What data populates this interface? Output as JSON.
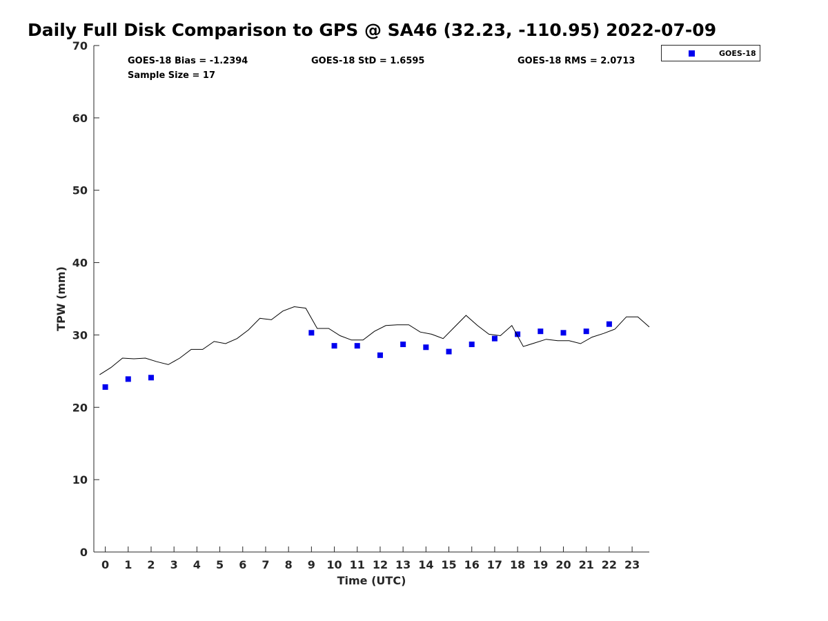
{
  "chart_data": {
    "type": "scatter",
    "title": "Daily Full Disk Comparison to GPS @ SA46 (32.23, -110.95) 2022-07-09",
    "xlabel": "Time (UTC)",
    "ylabel": "TPW (mm)",
    "xlim": [
      -0.5,
      23.75
    ],
    "ylim": [
      0,
      70
    ],
    "x_ticks": [
      0,
      1,
      2,
      3,
      4,
      5,
      6,
      7,
      8,
      9,
      10,
      11,
      12,
      13,
      14,
      15,
      16,
      17,
      18,
      19,
      20,
      21,
      22,
      23
    ],
    "y_ticks": [
      0,
      10,
      20,
      30,
      40,
      50,
      60,
      70
    ],
    "grid": false,
    "legend_position": "top-right",
    "stats": {
      "bias": "GOES-18 Bias = -1.2394",
      "std": "GOES-18 StD = 1.6595",
      "rms": "GOES-18 RMS = 2.0713",
      "sample_size": "Sample Size = 17"
    },
    "series": [
      {
        "name": "GOES-18",
        "type": "scatter",
        "color": "#0000ee",
        "marker": "square",
        "x": [
          0,
          1,
          2,
          9,
          10,
          11,
          12,
          13,
          14,
          15,
          16,
          17,
          18,
          19,
          20,
          21,
          22
        ],
        "y": [
          22.8,
          23.9,
          24.1,
          30.3,
          28.5,
          28.5,
          27.2,
          28.7,
          28.3,
          27.7,
          28.7,
          29.5,
          30.1,
          30.5,
          30.3,
          30.5,
          31.5
        ]
      },
      {
        "type": "line",
        "color": "#000000",
        "x": [
          -0.25,
          0.25,
          0.75,
          1.25,
          1.75,
          2.25,
          2.75,
          3.25,
          3.75,
          4.25,
          4.75,
          5.25,
          5.75,
          6.25,
          6.75,
          7.25,
          7.75,
          8.25,
          8.75,
          9.25,
          9.75,
          10.25,
          10.75,
          11.25,
          11.75,
          12.25,
          12.75,
          13.25,
          13.75,
          14.25,
          14.75,
          15.25,
          15.75,
          16.25,
          16.75,
          17.25,
          17.75,
          18.25,
          18.75,
          19.25,
          19.75,
          20.25,
          20.75,
          21.25,
          21.75,
          22.25,
          22.75,
          23.25,
          23.75
        ],
        "y": [
          24.5,
          25.5,
          26.8,
          26.7,
          26.8,
          26.3,
          25.9,
          26.8,
          28.0,
          28.0,
          29.1,
          28.8,
          29.5,
          30.7,
          32.3,
          32.1,
          33.3,
          33.9,
          33.7,
          30.9,
          30.9,
          29.9,
          29.3,
          29.3,
          30.5,
          31.3,
          31.4,
          31.4,
          30.4,
          30.1,
          29.5,
          31.1,
          32.7,
          31.3,
          30.1,
          29.9,
          31.3,
          28.4,
          28.9,
          29.4,
          29.2,
          29.2,
          28.8,
          29.7,
          30.2,
          30.8,
          32.5,
          32.5,
          31.1
        ]
      }
    ]
  }
}
